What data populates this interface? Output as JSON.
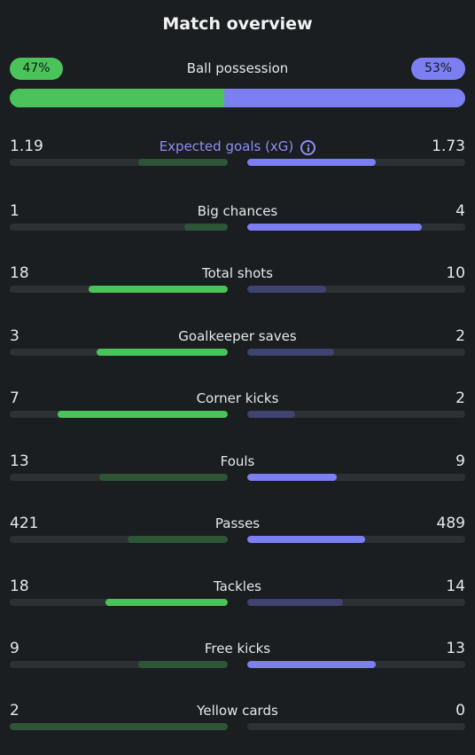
{
  "title": "Match overview",
  "possession": {
    "label": "Ball possession",
    "home": "47%",
    "away": "53%",
    "home_value": 47,
    "away_value": 53
  },
  "colors": {
    "home_win": "#4ac35a",
    "home_lose": "#2f5537",
    "away_win": "#7b7ff2",
    "away_lose": "#3f4370",
    "accent": "#8b8ff5",
    "background": "#1a1e21"
  },
  "stats": [
    {
      "label": "Expected goals (xG)",
      "home": "1.19",
      "away": "1.73",
      "home_fill": 0.41,
      "away_fill": 0.59,
      "winner": "away",
      "info": true
    },
    {
      "label": "Big chances",
      "home": "1",
      "away": "4",
      "home_fill": 0.2,
      "away_fill": 0.8,
      "winner": "away"
    },
    {
      "label": "Total shots",
      "home": "18",
      "away": "10",
      "home_fill": 0.64,
      "away_fill": 0.36,
      "winner": "home"
    },
    {
      "label": "Goalkeeper saves",
      "home": "3",
      "away": "2",
      "home_fill": 0.6,
      "away_fill": 0.4,
      "winner": "home"
    },
    {
      "label": "Corner kicks",
      "home": "7",
      "away": "2",
      "home_fill": 0.78,
      "away_fill": 0.22,
      "winner": "home"
    },
    {
      "label": "Fouls",
      "home": "13",
      "away": "9",
      "home_fill": 0.59,
      "away_fill": 0.41,
      "winner": "away"
    },
    {
      "label": "Passes",
      "home": "421",
      "away": "489",
      "home_fill": 0.46,
      "away_fill": 0.54,
      "winner": "away"
    },
    {
      "label": "Tackles",
      "home": "18",
      "away": "14",
      "home_fill": 0.56,
      "away_fill": 0.44,
      "winner": "home"
    },
    {
      "label": "Free kicks",
      "home": "9",
      "away": "13",
      "home_fill": 0.41,
      "away_fill": 0.59,
      "winner": "away"
    },
    {
      "label": "Yellow cards",
      "home": "2",
      "away": "0",
      "home_fill": 1.0,
      "away_fill": 0.0,
      "winner": "away"
    }
  ]
}
